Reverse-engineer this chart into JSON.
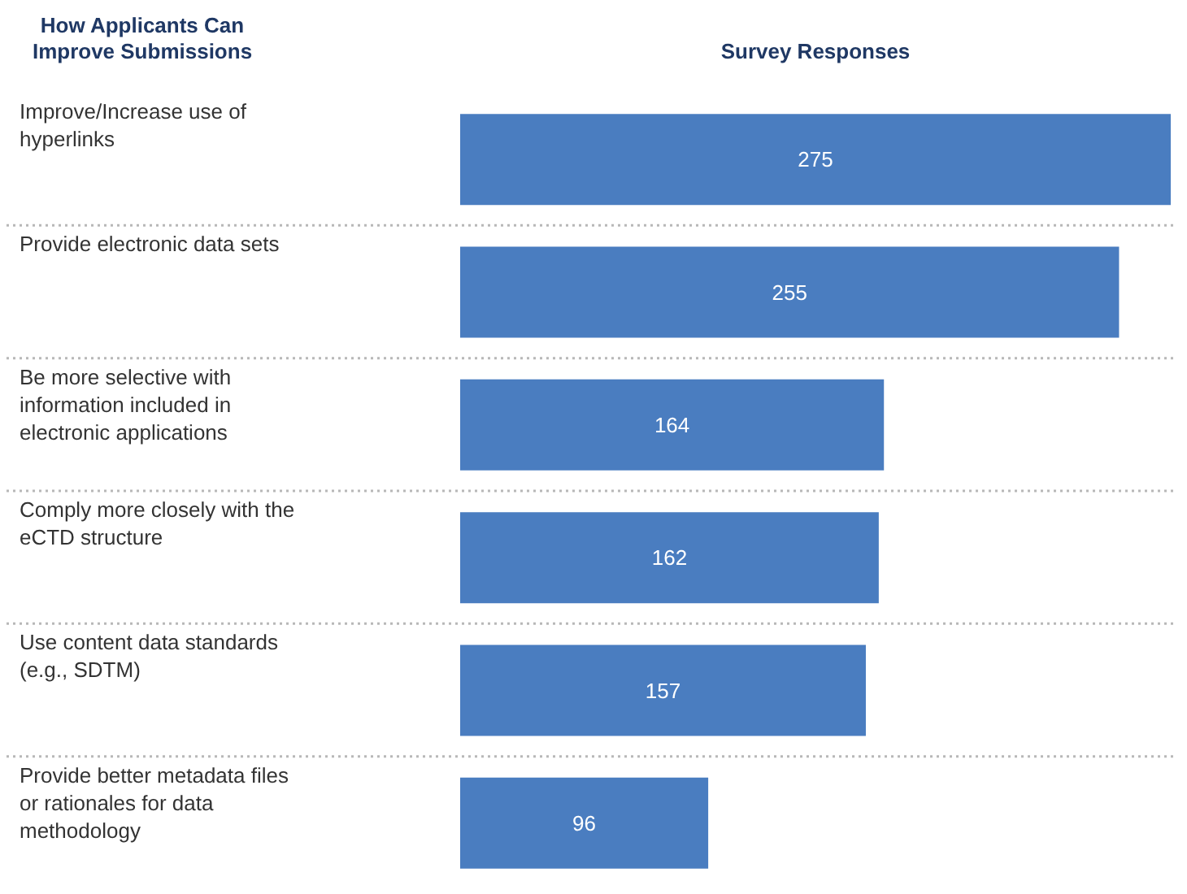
{
  "chart_data": {
    "type": "bar",
    "orientation": "horizontal",
    "ylabel": "How Applicants Can Improve Submissions",
    "xlabel": "Survey Responses",
    "categories": [
      "Improve/Increase  use of hyperlinks",
      "Provide electronic data sets",
      "Be more selective with information included in electronic applications",
      "Comply more closely with the eCTD structure",
      "Use content data standards (e.g., SDTM)",
      "Provide better metadata files or rationales for data methodology"
    ],
    "values": [
      275,
      255,
      164,
      162,
      157,
      96
    ],
    "color": "#4a7dc0",
    "data_labels": true
  }
}
